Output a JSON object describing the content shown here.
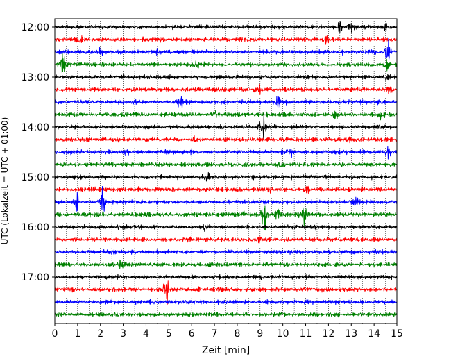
{
  "chart_data": {
    "type": "line",
    "title": "",
    "xlabel": "Zeit  [min]",
    "ylabel": "UTC (Lokalzeit = UTC + 01:00)",
    "xlim": [
      0,
      15
    ],
    "x_ticks": [
      "0",
      "1",
      "2",
      "3",
      "4",
      "5",
      "6",
      "7",
      "8",
      "9",
      "10",
      "11",
      "12",
      "13",
      "14",
      "15"
    ],
    "y_ticks": [
      "12:00",
      "13:00",
      "14:00",
      "15:00",
      "16:00",
      "17:00"
    ],
    "grid": "vertical-dotted",
    "trace_interval_minutes": 15,
    "trace_color_cycle": [
      "#000000",
      "#ff0000",
      "#0000ff",
      "#008000"
    ],
    "traces": [
      {
        "start": "12:00",
        "color": "#000000",
        "events": [
          [
            12.5,
            0.5
          ],
          [
            13.0,
            0.6
          ],
          [
            14.5,
            0.3
          ]
        ]
      },
      {
        "start": "12:15",
        "color": "#ff0000",
        "events": [
          [
            1.1,
            0.5
          ],
          [
            11.9,
            0.4
          ]
        ]
      },
      {
        "start": "12:30",
        "color": "#0000ff",
        "events": [
          [
            2.0,
            0.4
          ],
          [
            4.5,
            0.3
          ],
          [
            14.6,
            1.8
          ]
        ]
      },
      {
        "start": "12:45",
        "color": "#008000",
        "events": [
          [
            0.3,
            1.2
          ],
          [
            6.2,
            0.3
          ],
          [
            14.5,
            0.7
          ]
        ]
      },
      {
        "start": "13:00",
        "color": "#000000",
        "events": [
          [
            14.6,
            0.5
          ]
        ]
      },
      {
        "start": "13:15",
        "color": "#ff0000",
        "events": [
          [
            8.9,
            0.6
          ],
          [
            14.7,
            0.5
          ]
        ]
      },
      {
        "start": "13:30",
        "color": "#0000ff",
        "events": [
          [
            5.5,
            1.0
          ],
          [
            9.8,
            0.6
          ]
        ]
      },
      {
        "start": "13:45",
        "color": "#008000",
        "events": [
          [
            7.0,
            0.4
          ],
          [
            12.3,
            0.6
          ],
          [
            14.3,
            0.4
          ]
        ]
      },
      {
        "start": "14:00",
        "color": "#000000",
        "events": [
          [
            9.1,
            1.6
          ],
          [
            14.2,
            0.4
          ]
        ]
      },
      {
        "start": "14:15",
        "color": "#ff0000",
        "events": [
          [
            6.1,
            0.4
          ],
          [
            12.8,
            0.4
          ]
        ]
      },
      {
        "start": "14:30",
        "color": "#0000ff",
        "events": [
          [
            3.1,
            0.4
          ],
          [
            10.3,
            0.4
          ],
          [
            14.6,
            0.6
          ]
        ]
      },
      {
        "start": "14:45",
        "color": "#008000",
        "events": [
          [
            9.9,
            0.3
          ]
        ]
      },
      {
        "start": "15:00",
        "color": "#000000",
        "events": [
          [
            6.7,
            0.3
          ]
        ]
      },
      {
        "start": "15:15",
        "color": "#ff0000",
        "events": [
          [
            9.4,
            0.4
          ],
          [
            11.0,
            0.4
          ]
        ]
      },
      {
        "start": "15:30",
        "color": "#0000ff",
        "events": [
          [
            0.9,
            1.6
          ],
          [
            2.1,
            1.7
          ],
          [
            13.2,
            0.6
          ]
        ]
      },
      {
        "start": "15:45",
        "color": "#008000",
        "events": [
          [
            9.2,
            1.9
          ],
          [
            10.9,
            2.0
          ],
          [
            8.3,
            0.5
          ],
          [
            9.8,
            0.6
          ]
        ]
      },
      {
        "start": "16:00",
        "color": "#000000",
        "events": [
          [
            6.6,
            0.5
          ],
          [
            11.4,
            0.3
          ]
        ]
      },
      {
        "start": "16:15",
        "color": "#ff0000",
        "events": [
          [
            9.0,
            0.3
          ]
        ]
      },
      {
        "start": "16:30",
        "color": "#0000ff",
        "events": [
          [
            2.5,
            0.4
          ]
        ]
      },
      {
        "start": "16:45",
        "color": "#008000",
        "events": [
          [
            2.9,
            0.6
          ]
        ]
      },
      {
        "start": "17:00",
        "color": "#000000",
        "events": []
      },
      {
        "start": "17:15",
        "color": "#ff0000",
        "events": [
          [
            4.9,
            1.5
          ]
        ]
      },
      {
        "start": "17:30",
        "color": "#0000ff",
        "events": []
      },
      {
        "start": "17:45",
        "color": "#008000",
        "events": []
      }
    ]
  }
}
